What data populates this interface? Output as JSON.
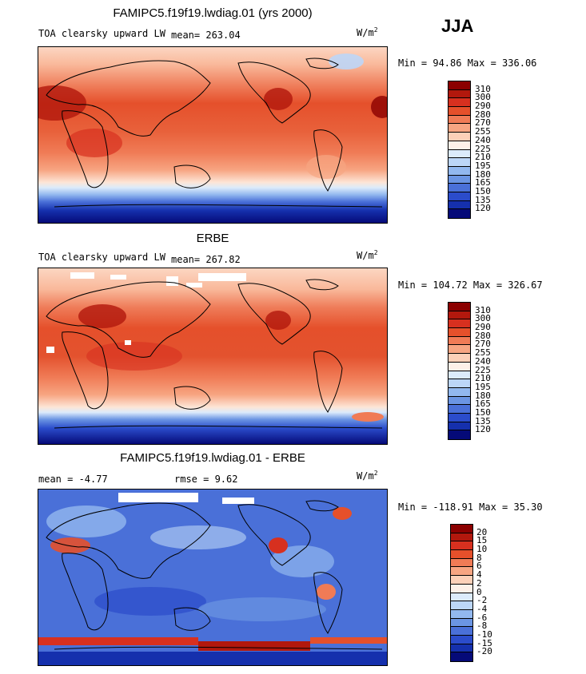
{
  "season": "JJA",
  "units": "W/m",
  "units_exp": "2",
  "panels": [
    {
      "title": "FAMIPC5.f19f19.lwdiag.01 (yrs 2000)",
      "variable": "TOA clearsky upward LW",
      "mean_text": "mean= 263.04",
      "minmax_text": "Min =  94.86 Max = 336.06",
      "colorbar": {
        "colors": [
          "#8b0000",
          "#b2180d",
          "#d7301f",
          "#e5502b",
          "#f07b56",
          "#f7a582",
          "#fcd0b8",
          "#fdf0e8",
          "#dcebfb",
          "#bcd6f7",
          "#92b8ef",
          "#6b95e3",
          "#4a70d8",
          "#2b4ccb",
          "#1530ad",
          "#050a78"
        ],
        "labels": [
          "310",
          "300",
          "290",
          "280",
          "270",
          "255",
          "240",
          "225",
          "210",
          "195",
          "180",
          "165",
          "150",
          "135",
          "120"
        ]
      }
    },
    {
      "title": "ERBE",
      "variable": "TOA clearsky upward LW",
      "mean_text": "mean= 267.82",
      "minmax_text": "Min = 104.72 Max = 326.67",
      "colorbar": {
        "colors": [
          "#8b0000",
          "#b2180d",
          "#d7301f",
          "#e5502b",
          "#f07b56",
          "#f7a582",
          "#fcd0b8",
          "#fdf0e8",
          "#dcebfb",
          "#bcd6f7",
          "#92b8ef",
          "#6b95e3",
          "#4a70d8",
          "#2b4ccb",
          "#1530ad",
          "#050a78"
        ],
        "labels": [
          "310",
          "300",
          "290",
          "280",
          "270",
          "255",
          "240",
          "225",
          "210",
          "195",
          "180",
          "165",
          "150",
          "135",
          "120"
        ]
      }
    },
    {
      "title": "FAMIPC5.f19f19.lwdiag.01 - ERBE",
      "mean_text": "mean =   -4.77",
      "rmse_text": "rmse =    9.62",
      "minmax_text": "Min = -118.91 Max =  35.30",
      "colorbar": {
        "colors": [
          "#8b0000",
          "#b2180d",
          "#d7301f",
          "#e5502b",
          "#f07b56",
          "#f7a582",
          "#fcd0b8",
          "#fdf0e8",
          "#dcebfb",
          "#bcd6f7",
          "#92b8ef",
          "#6b95e3",
          "#4a70d8",
          "#2b4ccb",
          "#1530ad",
          "#050a78"
        ],
        "labels": [
          "20",
          "15",
          "10",
          "8",
          "6",
          "4",
          "2",
          "0",
          "-2",
          "-4",
          "-6",
          "-8",
          "-10",
          "-15",
          "-20"
        ]
      }
    }
  ]
}
